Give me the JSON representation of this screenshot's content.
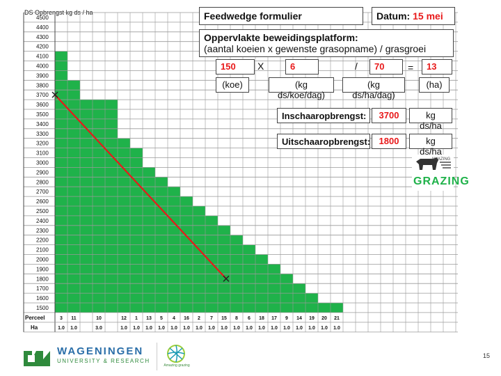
{
  "form": {
    "title": "Feedwedge formulier",
    "date_label": "Datum:",
    "date_value": "15 mei",
    "description_line1": "Oppervlakte beweidingsplatform:",
    "description_line2": "(aantal koeien x gewenste grasopname) / grasgroei",
    "cows_value": "150",
    "cows_unit": "(koe)",
    "times_symbol": "X",
    "intake_value": "6",
    "intake_unit": "(kg ds/koe/dag)",
    "divide_symbol": "/",
    "growth_value": "70",
    "growth_unit": "(kg ds/ha/dag)",
    "equals_symbol": "=",
    "area_value": "13",
    "area_unit": "(ha)",
    "in_label": "Inschaaropbrengst:",
    "in_value": "3700",
    "in_unit": "kg ds/ha",
    "out_label": "Uitschaaropbrengst:",
    "out_value": "1800",
    "out_unit": "kg ds/ha"
  },
  "logos": {
    "grazing_top": "AMAZING",
    "grazing_main": "GRAZING",
    "wur_line1": "WAGENINGEN",
    "wur_line2": "UNIVERSITY & RESEARCH",
    "second_logo_text": "Amazing grazing"
  },
  "page_number": "15",
  "colors": {
    "bar": "#1fb24a",
    "line": "#e8191a",
    "grid": "#999999",
    "label_red": "#e8191a"
  },
  "chart_data": {
    "type": "bar",
    "ylabel": "DS Opbrengst kg ds / ha",
    "y_ticks": [
      4500,
      4400,
      4300,
      4200,
      4100,
      4000,
      3900,
      3800,
      3700,
      3600,
      3500,
      3400,
      3300,
      3200,
      3100,
      3000,
      2900,
      2800,
      2700,
      2600,
      2500,
      2400,
      2300,
      2200,
      2100,
      2000,
      1900,
      1800,
      1700,
      1600,
      1500
    ],
    "ylim": [
      1450,
      4550
    ],
    "row_labels": [
      "Perceel",
      "Ha"
    ],
    "categories": [
      "3",
      "11",
      "10",
      "12",
      "1",
      "13",
      "5",
      "4",
      "16",
      "2",
      "7",
      "15",
      "8",
      "6",
      "18",
      "17",
      "9",
      "14",
      "19",
      "20",
      "21"
    ],
    "category_widths_ha": [
      1.0,
      1.0,
      3.0,
      1.0,
      1.0,
      1.0,
      1.0,
      1.0,
      1.0,
      1.0,
      1.0,
      1.0,
      1.0,
      1.0,
      1.0,
      1.0,
      1.0,
      1.0,
      1.0,
      1.0,
      1.0
    ],
    "ha_labels": [
      "1.0",
      "1.0",
      "3.0",
      "1.0",
      "1.0",
      "1.0",
      "1.0",
      "1.0",
      "1.0",
      "1.0",
      "1.0",
      "1.0",
      "1.0",
      "1.0",
      "1.0",
      "1.0",
      "1.0",
      "1.0",
      "1.0",
      "1.0",
      "1.0"
    ],
    "values": [
      4100,
      3800,
      3600,
      3200,
      3100,
      2900,
      2800,
      2700,
      2600,
      2500,
      2400,
      2300,
      2200,
      2100,
      2000,
      1900,
      1800,
      1700,
      1600,
      1500,
      1500
    ],
    "wedge_line": {
      "start_value": 3700,
      "end_value": 1800,
      "start_col": 0,
      "end_col": 12,
      "marker": "x"
    },
    "grid": true
  }
}
